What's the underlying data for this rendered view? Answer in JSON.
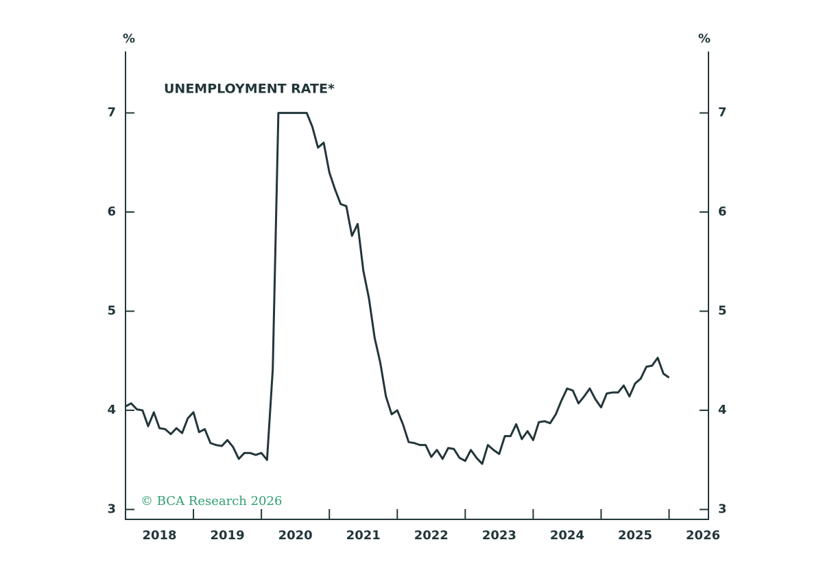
{
  "chart_data": {
    "type": "line",
    "title": "UNEMPLOYMENT RATE*",
    "y_label": "%",
    "y2_label": "%",
    "source": "© BCA Research 2026",
    "x": [
      2018,
      2018.083,
      2018.167,
      2018.25,
      2018.333,
      2018.417,
      2018.5,
      2018.583,
      2018.667,
      2018.75,
      2018.833,
      2018.917,
      2019,
      2019.083,
      2019.167,
      2019.25,
      2019.333,
      2019.417,
      2019.5,
      2019.583,
      2019.667,
      2019.75,
      2019.833,
      2019.917,
      2020,
      2020.083,
      2020.167,
      2020.25,
      2020.333,
      2020.417,
      2020.5,
      2020.583,
      2020.667,
      2020.75,
      2020.833,
      2020.917,
      2021,
      2021.083,
      2021.167,
      2021.25,
      2021.333,
      2021.417,
      2021.5,
      2021.583,
      2021.667,
      2021.75,
      2021.833,
      2021.917,
      2022,
      2022.083,
      2022.167,
      2022.25,
      2022.333,
      2022.417,
      2022.5,
      2022.583,
      2022.667,
      2022.75,
      2022.833,
      2022.917,
      2023,
      2023.083,
      2023.167,
      2023.25,
      2023.333,
      2023.417,
      2023.5,
      2023.583,
      2023.667,
      2023.75,
      2023.833,
      2023.917,
      2024,
      2024.083,
      2024.167,
      2024.25,
      2024.333,
      2024.417,
      2024.5,
      2024.583,
      2024.667,
      2024.75,
      2024.833,
      2024.917,
      2025,
      2025.083,
      2025.167,
      2025.25,
      2025.333,
      2025.417,
      2025.5,
      2025.583,
      2025.667,
      2025.75,
      2025.833,
      2025.917,
      2026
    ],
    "series": [
      {
        "name": "Unemployment rate",
        "color": "#22363a",
        "values": [
          4.04,
          4.07,
          4.01,
          4.0,
          3.84,
          3.98,
          3.82,
          3.81,
          3.76,
          3.82,
          3.77,
          3.92,
          3.98,
          3.78,
          3.81,
          3.67,
          3.65,
          3.64,
          3.7,
          3.63,
          3.51,
          3.57,
          3.57,
          3.55,
          3.57,
          3.5,
          4.41,
          7.0,
          7.0,
          7.0,
          7.0,
          7.0,
          7.0,
          6.86,
          6.65,
          6.7,
          6.4,
          6.23,
          6.08,
          6.06,
          5.76,
          5.88,
          5.41,
          5.13,
          4.73,
          4.48,
          4.14,
          3.96,
          4.0,
          3.86,
          3.68,
          3.67,
          3.65,
          3.65,
          3.53,
          3.6,
          3.51,
          3.62,
          3.61,
          3.52,
          3.49,
          3.6,
          3.52,
          3.46,
          3.65,
          3.6,
          3.56,
          3.74,
          3.74,
          3.86,
          3.71,
          3.79,
          3.7,
          3.88,
          3.89,
          3.87,
          3.96,
          4.1,
          4.22,
          4.2,
          4.07,
          4.14,
          4.22,
          4.11,
          4.03,
          4.17,
          4.18,
          4.18,
          4.25,
          4.14,
          4.27,
          4.32,
          4.44,
          4.45,
          4.53,
          4.37,
          4.33
        ]
      }
    ],
    "xlim": [
      2018,
      2026.58
    ],
    "xticks": [
      2018,
      2019,
      2020,
      2021,
      2022,
      2023,
      2024,
      2025,
      2026
    ],
    "ylim": [
      2.9,
      7.62
    ],
    "yticks": [
      3,
      4,
      5,
      6,
      7
    ],
    "y2lim": [
      2.9,
      7.62
    ],
    "y2ticks": [
      3,
      4,
      5,
      6,
      7
    ],
    "grid": false
  }
}
